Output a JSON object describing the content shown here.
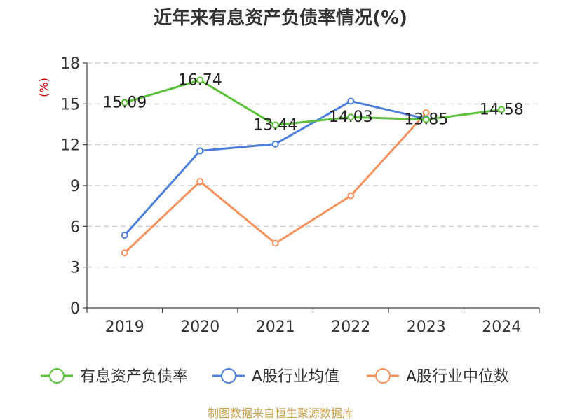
{
  "chart_data": {
    "type": "line",
    "title": "近年来有息资产负债率情况(%)",
    "y_unit_label": "(%)",
    "categories": [
      "2019",
      "2020",
      "2021",
      "2022",
      "2023",
      "2024"
    ],
    "ylim": [
      0,
      18
    ],
    "yticks": [
      "0",
      "3",
      "6",
      "9",
      "12",
      "15",
      "18"
    ],
    "grid": true,
    "legend_position": "bottom",
    "series": [
      {
        "name": "有息资产负债率",
        "color": "#5cc13a",
        "values": [
          15.09,
          16.74,
          13.44,
          14.03,
          13.85,
          14.58
        ],
        "labels": [
          "15.09",
          "16.74",
          "13.44",
          "14.03",
          "13.85",
          "14.58"
        ]
      },
      {
        "name": "A股行业均值",
        "color": "#4e7fd8",
        "values": [
          5.35,
          11.55,
          12.05,
          15.2,
          13.9,
          null
        ]
      },
      {
        "name": "A股行业中位数",
        "color": "#f4925e",
        "values": [
          4.05,
          9.3,
          4.75,
          8.25,
          14.35,
          null
        ]
      }
    ]
  },
  "footer": {
    "source": "制图数据来自恒生聚源数据库"
  }
}
